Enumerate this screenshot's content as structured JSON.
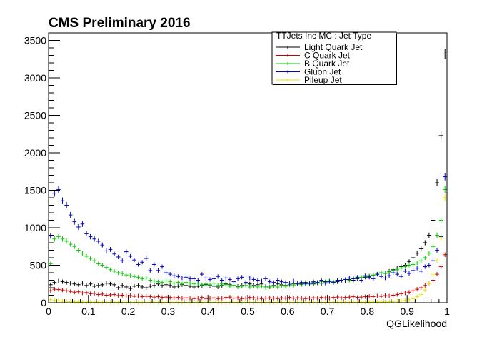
{
  "chart_data": {
    "type": "scatter",
    "title": "CMS Preliminary 2016",
    "xlabel": "QGLikelihood",
    "ylabel": "",
    "xlim": [
      0,
      1
    ],
    "ylim": [
      0,
      3600
    ],
    "x_ticks": [
      0,
      0.1,
      0.2,
      0.3,
      0.4,
      0.5,
      0.6,
      0.7,
      0.8,
      0.9,
      1
    ],
    "x_tick_labels": [
      "0",
      "0.1",
      "0.2",
      "0.3",
      "0.4",
      "0.5",
      "0.6",
      "0.7",
      "0.8",
      "0.9",
      "1"
    ],
    "y_ticks": [
      0,
      500,
      1000,
      1500,
      2000,
      2500,
      3000,
      3500
    ],
    "y_tick_labels": [
      "0",
      "500",
      "1000",
      "1500",
      "2000",
      "2500",
      "3000",
      "3500"
    ],
    "grid": false,
    "legend": {
      "header": "TTJets Inc MC : Jet Type",
      "placement": "top-right"
    },
    "x": [
      0.005,
      0.015,
      0.025,
      0.035,
      0.045,
      0.055,
      0.065,
      0.075,
      0.085,
      0.095,
      0.105,
      0.115,
      0.125,
      0.135,
      0.145,
      0.155,
      0.165,
      0.175,
      0.185,
      0.195,
      0.205,
      0.215,
      0.225,
      0.235,
      0.245,
      0.255,
      0.265,
      0.275,
      0.285,
      0.295,
      0.305,
      0.315,
      0.325,
      0.335,
      0.345,
      0.355,
      0.365,
      0.375,
      0.385,
      0.395,
      0.405,
      0.415,
      0.425,
      0.435,
      0.445,
      0.455,
      0.465,
      0.475,
      0.485,
      0.495,
      0.505,
      0.515,
      0.525,
      0.535,
      0.545,
      0.555,
      0.565,
      0.575,
      0.585,
      0.595,
      0.605,
      0.615,
      0.625,
      0.635,
      0.645,
      0.655,
      0.665,
      0.675,
      0.685,
      0.695,
      0.705,
      0.715,
      0.725,
      0.735,
      0.745,
      0.755,
      0.765,
      0.775,
      0.785,
      0.795,
      0.805,
      0.815,
      0.825,
      0.835,
      0.845,
      0.855,
      0.865,
      0.875,
      0.885,
      0.895,
      0.905,
      0.915,
      0.925,
      0.935,
      0.945,
      0.955,
      0.965,
      0.975,
      0.985,
      0.995
    ],
    "series": [
      {
        "name": "Light Quark Jet",
        "color": "#000000",
        "values": [
          240,
          270,
          290,
          280,
          270,
          260,
          250,
          240,
          260,
          230,
          250,
          220,
          230,
          240,
          260,
          250,
          240,
          200,
          230,
          210,
          190,
          220,
          230,
          210,
          200,
          220,
          230,
          250,
          230,
          240,
          230,
          210,
          220,
          240,
          230,
          220,
          210,
          220,
          230,
          240,
          230,
          220,
          210,
          230,
          250,
          240,
          230,
          220,
          230,
          260,
          250,
          230,
          240,
          250,
          220,
          210,
          230,
          250,
          240,
          230,
          240,
          250,
          260,
          250,
          270,
          260,
          250,
          270,
          260,
          280,
          290,
          270,
          280,
          300,
          290,
          310,
          300,
          320,
          330,
          340,
          350,
          360,
          380,
          400,
          390,
          420,
          440,
          460,
          480,
          500,
          550,
          600,
          660,
          720,
          800,
          900,
          1100,
          1600,
          2230,
          3320
        ]
      },
      {
        "name": "C Quark Jet",
        "color": "#cc0000",
        "values": [
          160,
          180,
          175,
          170,
          160,
          150,
          140,
          145,
          130,
          135,
          120,
          125,
          110,
          115,
          100,
          105,
          110,
          95,
          100,
          90,
          95,
          85,
          90,
          80,
          85,
          80,
          75,
          80,
          70,
          75,
          70,
          65,
          70,
          60,
          65,
          60,
          55,
          60,
          70,
          55,
          60,
          65,
          55,
          60,
          70,
          75,
          60,
          65,
          55,
          60,
          70,
          65,
          60,
          55,
          60,
          65,
          60,
          55,
          65,
          60,
          70,
          60,
          65,
          60,
          55,
          60,
          65,
          60,
          70,
          65,
          60,
          70,
          75,
          65,
          70,
          75,
          80,
          70,
          75,
          80,
          85,
          80,
          90,
          85,
          95,
          90,
          100,
          110,
          120,
          130,
          140,
          160,
          180,
          200,
          230,
          260,
          300,
          380,
          480,
          640
        ]
      },
      {
        "name": "B Quark Jet",
        "color": "#00cc00",
        "values": [
          520,
          850,
          880,
          850,
          820,
          780,
          750,
          700,
          660,
          620,
          590,
          560,
          520,
          500,
          470,
          440,
          420,
          400,
          390,
          370,
          360,
          350,
          340,
          320,
          330,
          300,
          290,
          280,
          270,
          290,
          280,
          260,
          270,
          250,
          270,
          260,
          250,
          260,
          240,
          250,
          240,
          260,
          230,
          250,
          240,
          220,
          230,
          210,
          220,
          230,
          210,
          220,
          210,
          220,
          200,
          210,
          220,
          210,
          230,
          220,
          240,
          230,
          250,
          240,
          260,
          250,
          270,
          260,
          280,
          270,
          290,
          280,
          300,
          290,
          310,
          300,
          320,
          330,
          340,
          350,
          360,
          370,
          380,
          400,
          390,
          410,
          430,
          440,
          460,
          480,
          500,
          510,
          530,
          560,
          600,
          660,
          750,
          900,
          1100,
          1510
        ]
      },
      {
        "name": "Gluon Jet",
        "color": "#0000cc",
        "values": [
          890,
          1460,
          1510,
          1360,
          1300,
          1170,
          1080,
          1010,
          1050,
          920,
          880,
          850,
          820,
          770,
          690,
          710,
          650,
          610,
          560,
          680,
          620,
          570,
          510,
          540,
          590,
          430,
          510,
          430,
          480,
          400,
          380,
          360,
          350,
          330,
          340,
          320,
          320,
          300,
          380,
          330,
          310,
          320,
          350,
          300,
          330,
          310,
          280,
          320,
          340,
          270,
          330,
          310,
          300,
          290,
          320,
          280,
          270,
          300,
          280,
          270,
          260,
          290,
          250,
          270,
          250,
          260,
          280,
          270,
          300,
          260,
          280,
          270,
          300,
          290,
          310,
          330,
          320,
          340,
          300,
          360,
          340,
          320,
          380,
          350,
          330,
          360,
          400,
          380,
          350,
          420,
          390,
          430,
          460,
          420,
          480,
          500,
          560,
          700,
          880,
          1680
        ]
      },
      {
        "name": "Pileup Jet",
        "color": "#e6e600",
        "values": [
          40,
          30,
          25,
          20,
          18,
          15,
          12,
          10,
          10,
          8,
          8,
          7,
          6,
          6,
          5,
          5,
          5,
          5,
          4,
          4,
          4,
          4,
          4,
          4,
          4,
          4,
          4,
          4,
          4,
          4,
          4,
          4,
          4,
          4,
          4,
          4,
          4,
          4,
          4,
          4,
          4,
          4,
          4,
          4,
          4,
          4,
          4,
          4,
          4,
          4,
          4,
          4,
          4,
          4,
          4,
          4,
          4,
          4,
          4,
          4,
          4,
          4,
          4,
          4,
          4,
          4,
          4,
          4,
          4,
          4,
          4,
          5,
          5,
          5,
          5,
          5,
          6,
          6,
          7,
          7,
          8,
          9,
          10,
          11,
          12,
          14,
          16,
          20,
          25,
          30,
          40,
          55,
          80,
          110,
          170,
          260,
          380,
          560,
          860,
          1400
        ]
      }
    ]
  }
}
